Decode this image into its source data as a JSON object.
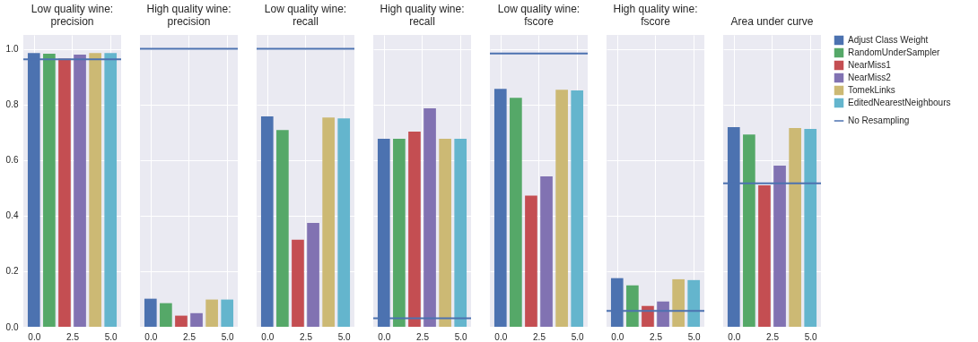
{
  "chart_data": [
    {
      "type": "bar",
      "title": "Low quality wine:\nprecision",
      "xlim": [
        -0.69,
        5.69
      ],
      "ylim": [
        0,
        1.05
      ],
      "xticks": [
        {
          "value": 0,
          "label": "0.0"
        },
        {
          "value": 2.5,
          "label": "2.5"
        },
        {
          "value": 5,
          "label": "5.0"
        }
      ],
      "yticks": [
        {
          "value": 0,
          "label": "0.0"
        },
        {
          "value": 0.2,
          "label": "0.2"
        },
        {
          "value": 0.4,
          "label": "0.4"
        },
        {
          "value": 0.6,
          "label": "0.6"
        },
        {
          "value": 0.8,
          "label": "0.8"
        },
        {
          "value": 1,
          "label": "1.0"
        }
      ],
      "grid": true,
      "series": [
        {
          "type": "line",
          "color": "#4c72b0",
          "x": [
            -0.69,
            5.69
          ],
          "values": [
            0.962,
            0.962
          ]
        },
        {
          "color": "#4c72b0",
          "x": [
            0
          ],
          "values": [
            0.985
          ]
        },
        {
          "color": "#55a868",
          "x": [
            1
          ],
          "values": [
            0.982
          ]
        },
        {
          "color": "#c44e52",
          "x": [
            2
          ],
          "values": [
            0.965
          ]
        },
        {
          "color": "#8172b2",
          "x": [
            3
          ],
          "values": [
            0.979
          ]
        },
        {
          "color": "#ccb974",
          "x": [
            4
          ],
          "values": [
            0.985
          ]
        },
        {
          "color": "#64b5cd",
          "x": [
            5
          ],
          "values": [
            0.985
          ]
        }
      ]
    },
    {
      "type": "bar",
      "title": "High quality wine:\nprecision",
      "xlim": [
        -0.69,
        5.69
      ],
      "ylim": [
        0,
        1.05
      ],
      "xticks": [
        {
          "value": 0,
          "label": "0.0"
        },
        {
          "value": 2.5,
          "label": "2.5"
        },
        {
          "value": 5,
          "label": "5.0"
        }
      ],
      "yticks": [
        {
          "value": 0,
          "label": null
        },
        {
          "value": 0.2,
          "label": null
        },
        {
          "value": 0.4,
          "label": null
        },
        {
          "value": 0.6,
          "label": null
        },
        {
          "value": 0.8,
          "label": null
        },
        {
          "value": 1,
          "label": null
        }
      ],
      "grid": true,
      "tick_labels": "x",
      "series": [
        {
          "type": "line",
          "color": "#4c72b0",
          "x": [
            -0.69,
            5.69
          ],
          "values": [
            1.0,
            1.0
          ]
        },
        {
          "color": "#4c72b0",
          "x": [
            0
          ],
          "values": [
            0.101
          ]
        },
        {
          "color": "#55a868",
          "x": [
            1
          ],
          "values": [
            0.085
          ]
        },
        {
          "color": "#c44e52",
          "x": [
            2
          ],
          "values": [
            0.04
          ]
        },
        {
          "color": "#8172b2",
          "x": [
            3
          ],
          "values": [
            0.049
          ]
        },
        {
          "color": "#ccb974",
          "x": [
            4
          ],
          "values": [
            0.098
          ]
        },
        {
          "color": "#64b5cd",
          "x": [
            5
          ],
          "values": [
            0.098
          ]
        }
      ]
    },
    {
      "type": "bar",
      "title": "Low quality wine:\nrecall",
      "xlim": [
        -0.69,
        5.69
      ],
      "ylim": [
        0,
        1.05
      ],
      "xticks": [
        {
          "value": 0,
          "label": "0.0"
        },
        {
          "value": 2.5,
          "label": "2.5"
        },
        {
          "value": 5,
          "label": "5.0"
        }
      ],
      "yticks": [
        {
          "value": 0,
          "label": null
        },
        {
          "value": 0.2,
          "label": null
        },
        {
          "value": 0.4,
          "label": null
        },
        {
          "value": 0.6,
          "label": null
        },
        {
          "value": 0.8,
          "label": null
        },
        {
          "value": 1,
          "label": null
        }
      ],
      "grid": true,
      "tick_labels": "x",
      "series": [
        {
          "type": "line",
          "color": "#4c72b0",
          "x": [
            -0.69,
            5.69
          ],
          "values": [
            1.0,
            1.0
          ]
        },
        {
          "color": "#4c72b0",
          "x": [
            0
          ],
          "values": [
            0.757
          ]
        },
        {
          "color": "#55a868",
          "x": [
            1
          ],
          "values": [
            0.708
          ]
        },
        {
          "color": "#c44e52",
          "x": [
            2
          ],
          "values": [
            0.313
          ]
        },
        {
          "color": "#8172b2",
          "x": [
            3
          ],
          "values": [
            0.374
          ]
        },
        {
          "color": "#ccb974",
          "x": [
            4
          ],
          "values": [
            0.753
          ]
        },
        {
          "color": "#64b5cd",
          "x": [
            5
          ],
          "values": [
            0.75
          ]
        }
      ]
    },
    {
      "type": "bar",
      "title": "High quality wine:\nrecall",
      "xlim": [
        -0.69,
        5.69
      ],
      "ylim": [
        0,
        1.05
      ],
      "xticks": [
        {
          "value": 0,
          "label": "0.0"
        },
        {
          "value": 2.5,
          "label": "2.5"
        },
        {
          "value": 5,
          "label": "5.0"
        }
      ],
      "yticks": [
        {
          "value": 0,
          "label": null
        },
        {
          "value": 0.2,
          "label": null
        },
        {
          "value": 0.4,
          "label": null
        },
        {
          "value": 0.6,
          "label": null
        },
        {
          "value": 0.8,
          "label": null
        },
        {
          "value": 1,
          "label": null
        }
      ],
      "grid": true,
      "tick_labels": "x",
      "series": [
        {
          "type": "line",
          "color": "#4c72b0",
          "x": [
            -0.69,
            5.69
          ],
          "values": [
            0.031,
            0.031
          ]
        },
        {
          "color": "#4c72b0",
          "x": [
            0
          ],
          "values": [
            0.676
          ]
        },
        {
          "color": "#55a868",
          "x": [
            1
          ],
          "values": [
            0.676
          ]
        },
        {
          "color": "#c44e52",
          "x": [
            2
          ],
          "values": [
            0.702
          ]
        },
        {
          "color": "#8172b2",
          "x": [
            3
          ],
          "values": [
            0.786
          ]
        },
        {
          "color": "#ccb974",
          "x": [
            4
          ],
          "values": [
            0.676
          ]
        },
        {
          "color": "#64b5cd",
          "x": [
            5
          ],
          "values": [
            0.676
          ]
        }
      ]
    },
    {
      "type": "bar",
      "title": "Low quality wine:\nfscore",
      "xlim": [
        -0.69,
        5.69
      ],
      "ylim": [
        0,
        1.05
      ],
      "xticks": [
        {
          "value": 0,
          "label": "0.0"
        },
        {
          "value": 2.5,
          "label": "2.5"
        },
        {
          "value": 5,
          "label": "5.0"
        }
      ],
      "yticks": [
        {
          "value": 0,
          "label": null
        },
        {
          "value": 0.2,
          "label": null
        },
        {
          "value": 0.4,
          "label": null
        },
        {
          "value": 0.6,
          "label": null
        },
        {
          "value": 0.8,
          "label": null
        },
        {
          "value": 1,
          "label": null
        }
      ],
      "grid": true,
      "tick_labels": "x",
      "series": [
        {
          "type": "line",
          "color": "#4c72b0",
          "x": [
            -0.69,
            5.69
          ],
          "values": [
            0.983,
            0.983
          ]
        },
        {
          "color": "#4c72b0",
          "x": [
            0
          ],
          "values": [
            0.856
          ]
        },
        {
          "color": "#55a868",
          "x": [
            1
          ],
          "values": [
            0.824
          ]
        },
        {
          "color": "#c44e52",
          "x": [
            2
          ],
          "values": [
            0.472
          ]
        },
        {
          "color": "#8172b2",
          "x": [
            3
          ],
          "values": [
            0.541
          ]
        },
        {
          "color": "#ccb974",
          "x": [
            4
          ],
          "values": [
            0.853
          ]
        },
        {
          "color": "#64b5cd",
          "x": [
            5
          ],
          "values": [
            0.85
          ]
        }
      ]
    },
    {
      "type": "bar",
      "title": "High quality wine:\nfscore",
      "xlim": [
        -0.69,
        5.69
      ],
      "ylim": [
        0,
        1.05
      ],
      "xticks": [
        {
          "value": 0,
          "label": "0.0"
        },
        {
          "value": 2.5,
          "label": "2.5"
        },
        {
          "value": 5,
          "label": "5.0"
        }
      ],
      "yticks": [
        {
          "value": 0,
          "label": null
        },
        {
          "value": 0.2,
          "label": null
        },
        {
          "value": 0.4,
          "label": null
        },
        {
          "value": 0.6,
          "label": null
        },
        {
          "value": 0.8,
          "label": null
        },
        {
          "value": 1,
          "label": null
        }
      ],
      "grid": true,
      "tick_labels": "x",
      "series": [
        {
          "type": "line",
          "color": "#4c72b0",
          "x": [
            -0.69,
            5.69
          ],
          "values": [
            0.057,
            0.057
          ]
        },
        {
          "color": "#4c72b0",
          "x": [
            0
          ],
          "values": [
            0.175
          ]
        },
        {
          "color": "#55a868",
          "x": [
            1
          ],
          "values": [
            0.149
          ]
        },
        {
          "color": "#c44e52",
          "x": [
            2
          ],
          "values": [
            0.075
          ]
        },
        {
          "color": "#8172b2",
          "x": [
            3
          ],
          "values": [
            0.091
          ]
        },
        {
          "color": "#ccb974",
          "x": [
            4
          ],
          "values": [
            0.171
          ]
        },
        {
          "color": "#64b5cd",
          "x": [
            5
          ],
          "values": [
            0.168
          ]
        }
      ]
    },
    {
      "type": "bar",
      "title": "Area under curve",
      "xlim": [
        -0.69,
        5.69
      ],
      "ylim": [
        0,
        1.05
      ],
      "xticks": [
        {
          "value": 0,
          "label": "0.0"
        },
        {
          "value": 2.5,
          "label": "2.5"
        },
        {
          "value": 5,
          "label": "5.0"
        }
      ],
      "yticks": [
        {
          "value": 0,
          "label": null
        },
        {
          "value": 0.2,
          "label": null
        },
        {
          "value": 0.4,
          "label": null
        },
        {
          "value": 0.6,
          "label": null
        },
        {
          "value": 0.8,
          "label": null
        },
        {
          "value": 1,
          "label": null
        }
      ],
      "grid": true,
      "tick_labels": "x",
      "legend": "right",
      "series": [
        {
          "name": "No Resampling",
          "type": "line",
          "color": "#4c72b0",
          "x": [
            -0.69,
            5.69
          ],
          "values": [
            0.516,
            0.516
          ]
        },
        {
          "name": "Adjust Class Weight",
          "color": "#4c72b0",
          "x": [
            0
          ],
          "values": [
            0.718
          ]
        },
        {
          "name": "RandomUnderSampler",
          "color": "#55a868",
          "x": [
            1
          ],
          "values": [
            0.692
          ]
        },
        {
          "name": "NearMiss1",
          "color": "#c44e52",
          "x": [
            2
          ],
          "values": [
            0.509
          ]
        },
        {
          "name": "NearMiss2",
          "color": "#8172b2",
          "x": [
            3
          ],
          "values": [
            0.58
          ]
        },
        {
          "name": "TomekLinks",
          "color": "#ccb974",
          "x": [
            4
          ],
          "values": [
            0.715
          ]
        },
        {
          "name": "EditedNearestNeighbours",
          "color": "#64b5cd",
          "x": [
            5
          ],
          "values": [
            0.712
          ]
        }
      ]
    }
  ]
}
